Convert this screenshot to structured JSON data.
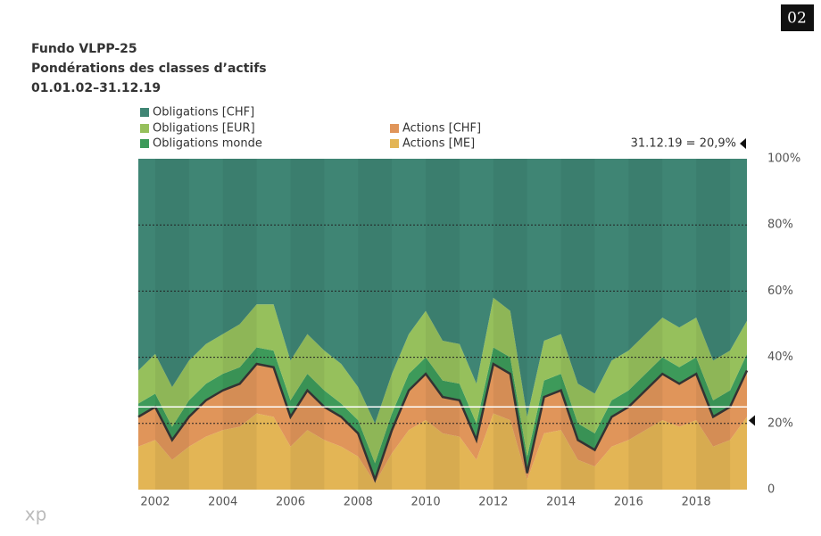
{
  "badge": "02",
  "logo": "xp",
  "chart_data": {
    "type": "stacked-area",
    "title": "Fundo VLPP-25",
    "subtitle": "Pondérations des classes d’actifs",
    "period": "01.01.02–31.12.19",
    "x": [
      2001.5,
      2002,
      2002.5,
      2003,
      2003.5,
      2004,
      2004.5,
      2005,
      2005.5,
      2006,
      2006.5,
      2007,
      2007.5,
      2008,
      2008.5,
      2009,
      2009.5,
      2010,
      2010.5,
      2011,
      2011.5,
      2012,
      2012.5,
      2013,
      2013.5,
      2014,
      2014.5,
      2015,
      2015.5,
      2016,
      2016.5,
      2017,
      2017.5,
      2018,
      2018.5,
      2019,
      2019.5
    ],
    "xlim": [
      2001.5,
      2019.5
    ],
    "xticks": [
      2002,
      2004,
      2006,
      2008,
      2010,
      2012,
      2014,
      2016,
      2018
    ],
    "ylim": [
      0,
      100
    ],
    "yticks": [
      0,
      {
        "value": 20,
        "label": "20%"
      },
      {
        "value": 40,
        "label": "40%"
      },
      {
        "value": 60,
        "label": "60%"
      },
      {
        "value": 80,
        "label": "80%"
      },
      {
        "value": 100,
        "label": "100%"
      }
    ],
    "grid": true,
    "benchmark": 25,
    "annotation": {
      "label": "31.12.19 = 20,9%",
      "value": 20.9
    },
    "series": [
      {
        "name": "Actions [ME]",
        "color": "#e3b555",
        "values": [
          13,
          15,
          9,
          13,
          16,
          18,
          19,
          23,
          22,
          13,
          18,
          15,
          13,
          10,
          2,
          11,
          18,
          21,
          17,
          16,
          9,
          23,
          21,
          3,
          17,
          18,
          9,
          7,
          13,
          15,
          18,
          21,
          19,
          21,
          13,
          15,
          22
        ]
      },
      {
        "name": "Actions [CHF]",
        "color": "#e0955a",
        "values": [
          9,
          10,
          6,
          9,
          11,
          12,
          13,
          15,
          15,
          9,
          12,
          10,
          9,
          7,
          1,
          7,
          12,
          14,
          11,
          11,
          6,
          15,
          14,
          2,
          11,
          12,
          6,
          5,
          9,
          10,
          12,
          14,
          13,
          14,
          9,
          10,
          14
        ]
      },
      {
        "name": "Obligations monde",
        "color": "#3d9a5a",
        "values": [
          4,
          4,
          4,
          5,
          5,
          5,
          5,
          5,
          5,
          5,
          5,
          5,
          4,
          4,
          5,
          5,
          5,
          5,
          5,
          5,
          5,
          5,
          5,
          5,
          5,
          5,
          5,
          5,
          5,
          5,
          5,
          5,
          5,
          5,
          5,
          5,
          5
        ]
      },
      {
        "name": "Obligations [EUR]",
        "color": "#96c05c",
        "values": [
          10,
          12,
          12,
          12,
          12,
          12,
          13,
          13,
          14,
          12,
          12,
          12,
          12,
          10,
          12,
          12,
          12,
          14,
          12,
          12,
          12,
          15,
          14,
          12,
          12,
          12,
          12,
          12,
          12,
          12,
          12,
          12,
          12,
          12,
          12,
          12,
          10
        ]
      },
      {
        "name": "Obligations [CHF]",
        "color": "#3f8574",
        "values": [
          64,
          59,
          69,
          61,
          56,
          53,
          50,
          44,
          44,
          61,
          53,
          58,
          62,
          69,
          80,
          65,
          53,
          46,
          55,
          56,
          68,
          42,
          46,
          78,
          55,
          53,
          68,
          71,
          61,
          58,
          53,
          48,
          51,
          48,
          61,
          58,
          49
        ]
      }
    ]
  }
}
